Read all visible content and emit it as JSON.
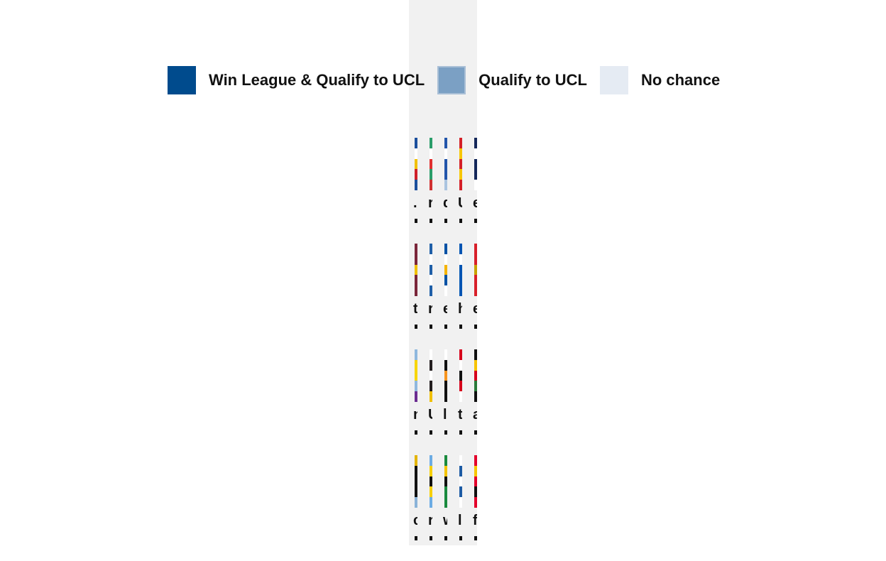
{
  "legend": [
    {
      "label": "Win League & Qualify to UCL",
      "color": "#004b8d",
      "border": "#004b8d"
    },
    {
      "label": "Qualify to UCL",
      "color": "#7ba0c4",
      "border": "#a9bfd6"
    },
    {
      "label": "No chance",
      "color": "#e5ebf3",
      "border": "#e5ebf3"
    }
  ],
  "rows": [
    [
      {
        "text": ".",
        "colors": [
          "#1c4f9c",
          "#ffffff",
          "#f0c000",
          "#d0202a",
          "#1c4f9c"
        ]
      },
      {
        "text": "r",
        "colors": [
          "#2a9d6a",
          "#ffffff",
          "#e03030",
          "#2a9d6a",
          "#d03030"
        ]
      },
      {
        "text": "d",
        "colors": [
          "#2255aa",
          "#ffffff",
          "#2255aa",
          "#2255aa",
          "#aac4e0"
        ]
      },
      {
        "text": "U",
        "colors": [
          "#d42027",
          "#f7c700",
          "#d42027",
          "#f7c700",
          "#d42027"
        ]
      },
      {
        "text": "e",
        "colors": [
          "#14285a",
          "#ffffff",
          "#14285a",
          "#14285a",
          "#ffffff"
        ]
      }
    ],
    [
      {
        "text": "t",
        "colors": [
          "#7a263a",
          "#7a263a",
          "#f0c000",
          "#7a263a",
          "#7a263a"
        ]
      },
      {
        "text": "r",
        "colors": [
          "#1f5fa8",
          "#ffffff",
          "#1f5fa8",
          "#ffffff",
          "#1f5fa8"
        ]
      },
      {
        "text": "e",
        "colors": [
          "#0052a5",
          "#ffffff",
          "#f5b400",
          "#0052a5",
          "#ffffff"
        ]
      },
      {
        "text": "h",
        "colors": [
          "#0055b3",
          "#ffffff",
          "#0055b3",
          "#0055b3",
          "#0055b3"
        ]
      },
      {
        "text": "e",
        "colors": [
          "#d8202a",
          "#d8202a",
          "#c8a200",
          "#d8202a",
          "#d8202a"
        ]
      }
    ],
    [
      {
        "text": "n",
        "colors": [
          "#8fb8de",
          "#f7d500",
          "#f7d500",
          "#8fb8de",
          "#6b2c91"
        ]
      },
      {
        "text": "U",
        "colors": [
          "#ffffff",
          "#241f20",
          "#ffffff",
          "#241f20",
          "#f0c000"
        ]
      },
      {
        "text": "l",
        "colors": [
          "#ffffff",
          "#111111",
          "#f7941d",
          "#111111",
          "#111111"
        ]
      },
      {
        "text": "t",
        "colors": [
          "#d6001c",
          "#ffffff",
          "#111111",
          "#d6001c",
          "#ffffff"
        ]
      },
      {
        "text": "a",
        "colors": [
          "#111111",
          "#f7c300",
          "#d6001c",
          "#2a7b3a",
          "#111111"
        ]
      }
    ],
    [
      {
        "text": "c",
        "colors": [
          "#e3b400",
          "#111111",
          "#111111",
          "#111111",
          "#8ab3d8"
        ]
      },
      {
        "text": "r",
        "colors": [
          "#6cace4",
          "#f7d000",
          "#111111",
          "#f7d000",
          "#6cace4"
        ]
      },
      {
        "text": "w",
        "colors": [
          "#1a8a3e",
          "#f5c400",
          "#111111",
          "#1a8a3e",
          "#1a8a3e"
        ]
      },
      {
        "text": "l",
        "colors": [
          "#ffffff",
          "#1d5ba4",
          "#ffffff",
          "#1d5ba4",
          "#ffffff"
        ]
      },
      {
        "text": "f",
        "colors": [
          "#e3002b",
          "#f7c600",
          "#e3002b",
          "#111111",
          "#e3002b"
        ]
      }
    ]
  ]
}
